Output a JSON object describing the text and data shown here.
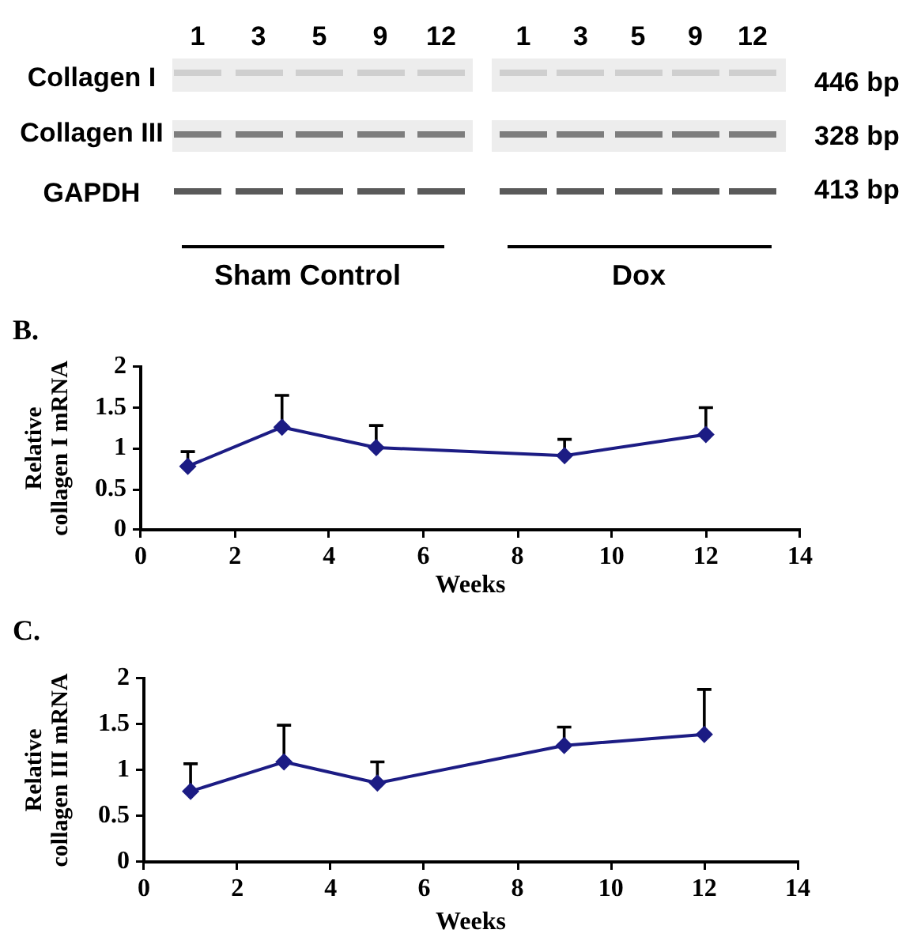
{
  "chart_data": [
    {
      "type": "other",
      "categories": [
        "1",
        "3",
        "5",
        "9",
        "12",
        "1",
        "3",
        "5",
        "9",
        "12"
      ],
      "y_categories": [
        "Collagen I",
        "Collagen III",
        "GAPDH"
      ],
      "y2_categories": [
        "446 bp",
        "328 bp",
        "413 bp"
      ],
      "annotations": [
        "Sham Control",
        "Dox"
      ]
    },
    {
      "type": "line",
      "title": "B.",
      "xlabel": "Weeks",
      "ylabel": "Relative\ncollagen I mRNA",
      "x": [
        1,
        3,
        5,
        9,
        12
      ],
      "values": [
        0.78,
        1.26,
        1.01,
        0.91,
        1.17
      ],
      "errors": [
        [
          0.78,
          0.96
        ],
        [
          1.26,
          1.65
        ],
        [
          1.01,
          1.28
        ],
        [
          0.91,
          1.11
        ],
        [
          1.17,
          1.5
        ]
      ],
      "color": "#1c1c84",
      "xlim": [
        0,
        14
      ],
      "xticks": [
        0,
        2,
        4,
        6,
        8,
        10,
        12,
        14
      ],
      "ylim": [
        0,
        2
      ],
      "yticks": [
        0,
        0.5,
        1,
        1.5,
        2
      ],
      "marker": "diamond",
      "line_style": "solid"
    },
    {
      "type": "line",
      "title": "C.",
      "xlabel": "Weeks",
      "ylabel": "Relative\ncollagen III mRNA",
      "x": [
        1,
        3,
        5,
        9,
        12
      ],
      "values": [
        0.77,
        1.09,
        0.86,
        1.27,
        1.39
      ],
      "errors": [
        [
          0.77,
          1.07
        ],
        [
          1.09,
          1.49
        ],
        [
          0.86,
          1.09
        ],
        [
          1.27,
          1.47
        ],
        [
          1.39,
          1.88
        ]
      ],
      "color": "#1c1c84",
      "xlim": [
        0,
        14
      ],
      "xticks": [
        0,
        2,
        4,
        6,
        8,
        10,
        12,
        14
      ],
      "ylim": [
        0,
        2
      ],
      "yticks": [
        0,
        0.5,
        1,
        1.5,
        2
      ],
      "marker": "diamond",
      "line_style": "solid"
    }
  ]
}
